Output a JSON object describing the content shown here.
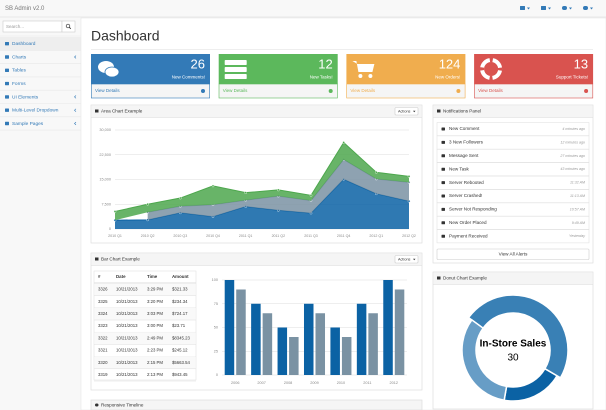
{
  "navbar": {
    "brand": "SB Admin v2.0"
  },
  "sidebar": {
    "search_placeholder": "Search...",
    "items": [
      {
        "label": "Dashboard",
        "active": true
      },
      {
        "label": "Charts",
        "submenu": true
      },
      {
        "label": "Tables"
      },
      {
        "label": "Forms"
      },
      {
        "label": "UI Elements",
        "submenu": true
      },
      {
        "label": "Multi-Level Dropdown",
        "submenu": true
      },
      {
        "label": "Sample Pages",
        "submenu": true
      }
    ]
  },
  "page_title": "Dashboard",
  "stats": [
    {
      "value": 26,
      "label": "New Comments!",
      "link": "View Details",
      "color": "#337ab7"
    },
    {
      "value": 12,
      "label": "New Tasks!",
      "link": "View Details",
      "color": "#5cb85c"
    },
    {
      "value": 124,
      "label": "New Orders!",
      "link": "View Details",
      "color": "#f0ad4e"
    },
    {
      "value": 13,
      "label": "Support Tickets!",
      "link": "View Details",
      "color": "#d9534f"
    }
  ],
  "notifications": {
    "title": "Notifications Panel",
    "items": [
      {
        "text": "New Comment",
        "time": "4 minutes ago"
      },
      {
        "text": "3 New Followers",
        "time": "12 minutes ago"
      },
      {
        "text": "Message Sent",
        "time": "27 minutes ago"
      },
      {
        "text": "New Task",
        "time": "43 minutes ago"
      },
      {
        "text": "Server Rebooted",
        "time": "11:32 AM"
      },
      {
        "text": "Server Crashed!",
        "time": "11:13 AM"
      },
      {
        "text": "Server Not Responding",
        "time": "10:57 AM"
      },
      {
        "text": "New Order Placed",
        "time": "9:49 AM"
      },
      {
        "text": "Payment Received",
        "time": "Yesterday"
      }
    ],
    "button": "View All Alerts"
  },
  "table": {
    "headers": [
      "#",
      "Date",
      "Time",
      "Amount"
    ],
    "rows": [
      [
        "3326",
        "10/21/2013",
        "3:29 PM",
        "$321.33"
      ],
      [
        "3325",
        "10/21/2013",
        "3:20 PM",
        "$234.34"
      ],
      [
        "3324",
        "10/21/2013",
        "3:03 PM",
        "$724.17"
      ],
      [
        "3323",
        "10/21/2013",
        "3:00 PM",
        "$23.71"
      ],
      [
        "3322",
        "10/21/2013",
        "2:49 PM",
        "$8345.23"
      ],
      [
        "3321",
        "10/21/2013",
        "2:23 PM",
        "$245.12"
      ],
      [
        "3320",
        "10/21/2013",
        "2:15 PM",
        "$5663.54"
      ],
      [
        "3319",
        "10/21/2013",
        "2:13 PM",
        "$943.45"
      ]
    ]
  },
  "timeline": {
    "title": "Responsive Timeline"
  },
  "chart_data": [
    {
      "type": "area",
      "title": "Area Chart Example",
      "actions": "Actions",
      "stacked": true,
      "grid": true,
      "categories": [
        "2010 Q1",
        "2010 Q2",
        "2010 Q3",
        "2010 Q4",
        "2011 Q1",
        "2011 Q2",
        "2011 Q3",
        "2011 Q4",
        "2012 Q1",
        "2012 Q2"
      ],
      "series": [
        {
          "color": "#0b62a4",
          "values": [
            2666,
            2778,
            4912,
            3767,
            6810,
            5670,
            4820,
            15073,
            10687,
            8432
          ]
        },
        {
          "color": "#7a92a3",
          "values": [
            null,
            2294,
            1969,
            3597,
            1914,
            4293,
            3795,
            5967,
            4460,
            5713
          ]
        },
        {
          "color": "#4da74d",
          "values": [
            2647,
            2441,
            2501,
            5689,
            2293,
            1881,
            1588,
            5175,
            2028,
            1791
          ]
        }
      ],
      "ylim": [
        0,
        30000
      ],
      "yticks": [
        0,
        {
          "value": 7500,
          "label": "7,500"
        },
        {
          "value": 15000,
          "label": "15,000"
        },
        {
          "value": 22500,
          "label": "22,500"
        },
        {
          "value": 30000,
          "label": "30,000"
        }
      ]
    },
    {
      "type": "bar",
      "title": "Bar Chart Example",
      "actions": "Actions",
      "grid": true,
      "categories": [
        "2006",
        "2007",
        "2008",
        "2009",
        "2010",
        "2011",
        "2012"
      ],
      "series": [
        {
          "color": "#0b62a4",
          "values": [
            100,
            75,
            50,
            75,
            50,
            75,
            100
          ]
        },
        {
          "color": "#7a92a3",
          "values": [
            90,
            65,
            40,
            65,
            40,
            65,
            90
          ]
        }
      ],
      "ylim": [
        0,
        100
      ],
      "yticks": [
        0,
        25,
        50,
        75,
        100
      ]
    },
    {
      "type": "donut",
      "title": "Donut Chart Example",
      "values": [
        12,
        30,
        20
      ],
      "colors": [
        "#0b62a4",
        "#3980b5",
        "#679dc6"
      ],
      "selected": 1,
      "selected_label": "In-Store Sales"
    }
  ]
}
